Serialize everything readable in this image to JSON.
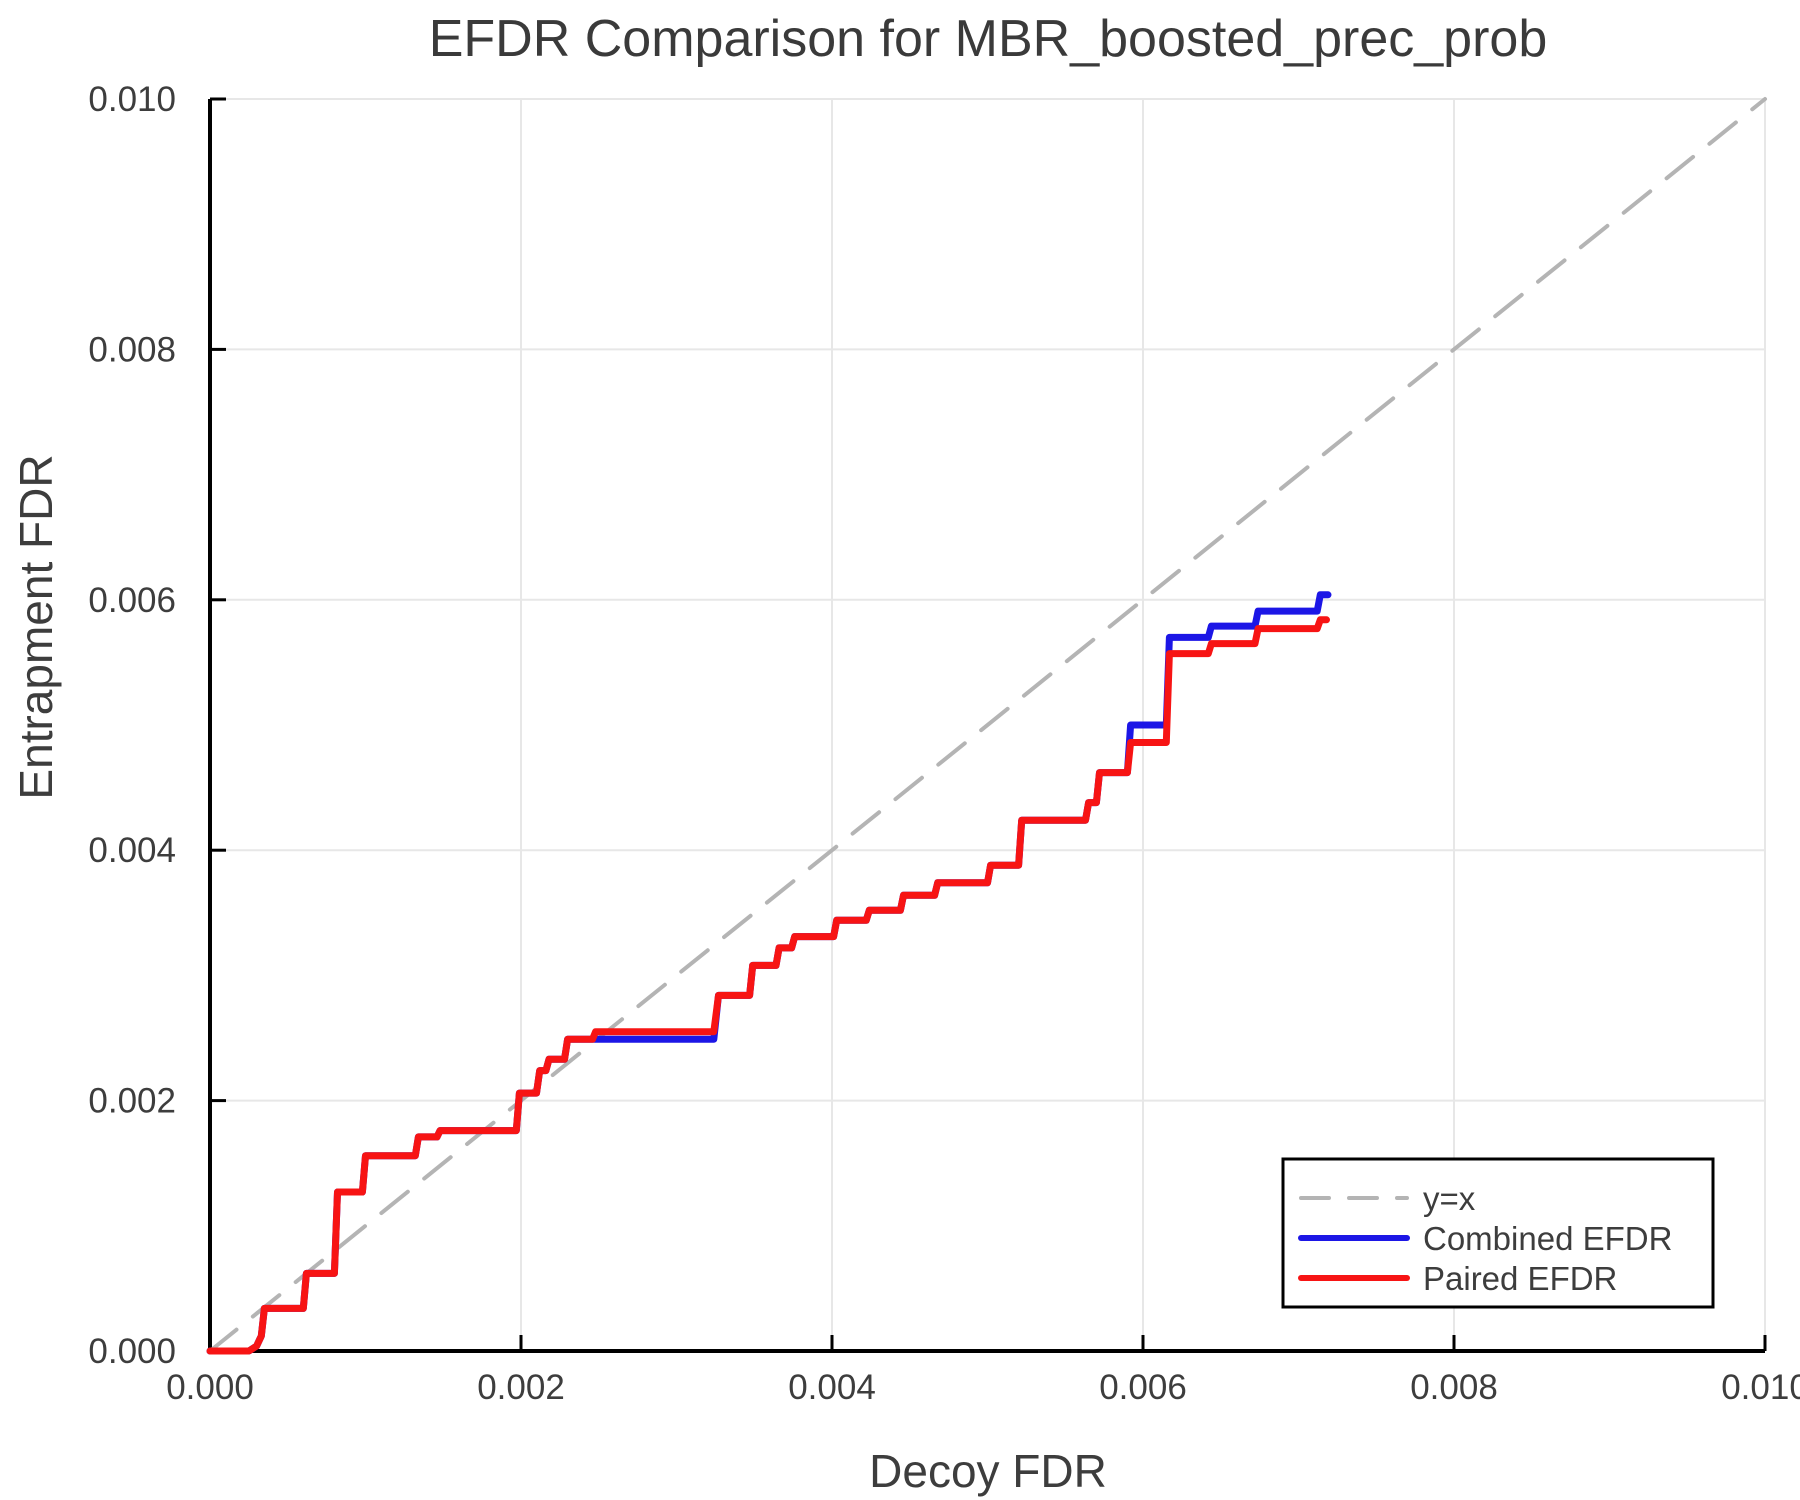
{
  "title": "EFDR Comparison for MBR_boosted_prec_prob",
  "axes": {
    "x_label": "Decoy FDR",
    "y_label": "Entrapment FDR",
    "x_range": [
      0.0,
      0.01
    ],
    "y_range": [
      0.0,
      0.01
    ],
    "x_ticks": [
      {
        "value": 0.0,
        "label": "0.000"
      },
      {
        "value": 0.002,
        "label": "0.002"
      },
      {
        "value": 0.004,
        "label": "0.004"
      },
      {
        "value": 0.006,
        "label": "0.006"
      },
      {
        "value": 0.008,
        "label": "0.008"
      },
      {
        "value": 0.01,
        "label": "0.010"
      }
    ],
    "y_ticks": [
      {
        "value": 0.0,
        "label": "0.000"
      },
      {
        "value": 0.002,
        "label": "0.002"
      },
      {
        "value": 0.004,
        "label": "0.004"
      },
      {
        "value": 0.006,
        "label": "0.006"
      },
      {
        "value": 0.008,
        "label": "0.008"
      },
      {
        "value": 0.01,
        "label": "0.010"
      }
    ],
    "grid": true
  },
  "legend": {
    "position": "bottom-right",
    "entries": [
      {
        "label": "y=x",
        "color": "#b4b4b4",
        "style": "dashed"
      },
      {
        "label": "Combined EFDR",
        "color": "#1c16e6",
        "style": "solid"
      },
      {
        "label": "Paired EFDR",
        "color": "#f71414",
        "style": "solid"
      }
    ]
  },
  "colors": {
    "identity_line": "#b4b4b4",
    "combined_efdr": "#1c16e6",
    "paired_efdr": "#f71414",
    "grid": "#e7e7e7",
    "axis": "#000000",
    "text": "#3d3d3d",
    "legend_border": "#000000",
    "legend_background": "#ffffff"
  },
  "chart_data": {
    "type": "line",
    "title": "EFDR Comparison for MBR_boosted_prec_prob",
    "xlabel": "Decoy FDR",
    "ylabel": "Entrapment FDR",
    "xlim": [
      0.0,
      0.01
    ],
    "ylim": [
      0.0,
      0.01
    ],
    "grid": true,
    "legend_position": "bottom-right",
    "series": [
      {
        "name": "y=x",
        "style": "dashed",
        "color": "#b4b4b4",
        "points": [
          [
            0.0,
            0.0
          ],
          [
            0.01,
            0.01
          ]
        ]
      },
      {
        "name": "Combined EFDR",
        "style": "solid",
        "color": "#1c16e6",
        "points": [
          [
            0.0,
            0.0
          ],
          [
            0.00025,
            0.0
          ],
          [
            0.0003,
            4e-05
          ],
          [
            0.00033,
            0.00012
          ],
          [
            0.00035,
            0.00034
          ],
          [
            0.0006,
            0.00034
          ],
          [
            0.00062,
            0.00062
          ],
          [
            0.0008,
            0.00062
          ],
          [
            0.00082,
            0.00127
          ],
          [
            0.00098,
            0.00127
          ],
          [
            0.001,
            0.00156
          ],
          [
            0.00132,
            0.00156
          ],
          [
            0.00134,
            0.00171
          ],
          [
            0.00146,
            0.00171
          ],
          [
            0.00148,
            0.00176
          ],
          [
            0.00197,
            0.00176
          ],
          [
            0.00199,
            0.00206
          ],
          [
            0.0021,
            0.00206
          ],
          [
            0.00212,
            0.00224
          ],
          [
            0.00216,
            0.00224
          ],
          [
            0.00218,
            0.00233
          ],
          [
            0.00228,
            0.00233
          ],
          [
            0.0023,
            0.00249
          ],
          [
            0.00324,
            0.00249
          ],
          [
            0.00327,
            0.00284
          ],
          [
            0.00347,
            0.00284
          ],
          [
            0.00349,
            0.00308
          ],
          [
            0.00364,
            0.00308
          ],
          [
            0.00366,
            0.00322
          ],
          [
            0.00374,
            0.00322
          ],
          [
            0.00376,
            0.00331
          ],
          [
            0.00401,
            0.00331
          ],
          [
            0.00403,
            0.00344
          ],
          [
            0.00422,
            0.00344
          ],
          [
            0.00424,
            0.00352
          ],
          [
            0.00444,
            0.00352
          ],
          [
            0.00446,
            0.00364
          ],
          [
            0.00466,
            0.00364
          ],
          [
            0.00468,
            0.00374
          ],
          [
            0.005,
            0.00374
          ],
          [
            0.00502,
            0.00388
          ],
          [
            0.0052,
            0.00388
          ],
          [
            0.00522,
            0.00424
          ],
          [
            0.00563,
            0.00424
          ],
          [
            0.00565,
            0.00438
          ],
          [
            0.0057,
            0.00438
          ],
          [
            0.00572,
            0.00462
          ],
          [
            0.0059,
            0.00462
          ],
          [
            0.00592,
            0.005
          ],
          [
            0.00615,
            0.005
          ],
          [
            0.00617,
            0.0057
          ],
          [
            0.00642,
            0.0057
          ],
          [
            0.00644,
            0.00579
          ],
          [
            0.00672,
            0.00579
          ],
          [
            0.00674,
            0.00591
          ],
          [
            0.00712,
            0.00591
          ],
          [
            0.00714,
            0.00604
          ],
          [
            0.00719,
            0.00604
          ]
        ]
      },
      {
        "name": "Paired EFDR",
        "style": "solid",
        "color": "#f71414",
        "points": [
          [
            0.0,
            0.0
          ],
          [
            0.00025,
            0.0
          ],
          [
            0.0003,
            4e-05
          ],
          [
            0.00033,
            0.00012
          ],
          [
            0.00035,
            0.00034
          ],
          [
            0.0006,
            0.00034
          ],
          [
            0.00062,
            0.00062
          ],
          [
            0.0008,
            0.00062
          ],
          [
            0.00082,
            0.00127
          ],
          [
            0.00098,
            0.00127
          ],
          [
            0.001,
            0.00156
          ],
          [
            0.00132,
            0.00156
          ],
          [
            0.00134,
            0.00171
          ],
          [
            0.00146,
            0.00171
          ],
          [
            0.00148,
            0.00176
          ],
          [
            0.00197,
            0.00176
          ],
          [
            0.00199,
            0.00206
          ],
          [
            0.0021,
            0.00206
          ],
          [
            0.00212,
            0.00224
          ],
          [
            0.00216,
            0.00224
          ],
          [
            0.00218,
            0.00233
          ],
          [
            0.00228,
            0.00233
          ],
          [
            0.0023,
            0.00249
          ],
          [
            0.00246,
            0.00249
          ],
          [
            0.00248,
            0.00255
          ],
          [
            0.00324,
            0.00255
          ],
          [
            0.00327,
            0.00284
          ],
          [
            0.00347,
            0.00284
          ],
          [
            0.00349,
            0.00308
          ],
          [
            0.00364,
            0.00308
          ],
          [
            0.00366,
            0.00322
          ],
          [
            0.00374,
            0.00322
          ],
          [
            0.00376,
            0.00331
          ],
          [
            0.00401,
            0.00331
          ],
          [
            0.00403,
            0.00344
          ],
          [
            0.00422,
            0.00344
          ],
          [
            0.00424,
            0.00352
          ],
          [
            0.00444,
            0.00352
          ],
          [
            0.00446,
            0.00364
          ],
          [
            0.00466,
            0.00364
          ],
          [
            0.00468,
            0.00374
          ],
          [
            0.005,
            0.00374
          ],
          [
            0.00502,
            0.00388
          ],
          [
            0.0052,
            0.00388
          ],
          [
            0.00522,
            0.00424
          ],
          [
            0.00563,
            0.00424
          ],
          [
            0.00565,
            0.00438
          ],
          [
            0.0057,
            0.00438
          ],
          [
            0.00572,
            0.00462
          ],
          [
            0.0059,
            0.00462
          ],
          [
            0.00592,
            0.00486
          ],
          [
            0.00615,
            0.00486
          ],
          [
            0.00617,
            0.00557
          ],
          [
            0.00642,
            0.00557
          ],
          [
            0.00644,
            0.00565
          ],
          [
            0.00672,
            0.00565
          ],
          [
            0.00674,
            0.00577
          ],
          [
            0.00712,
            0.00577
          ],
          [
            0.00714,
            0.00584
          ],
          [
            0.00718,
            0.00584
          ]
        ]
      }
    ]
  }
}
